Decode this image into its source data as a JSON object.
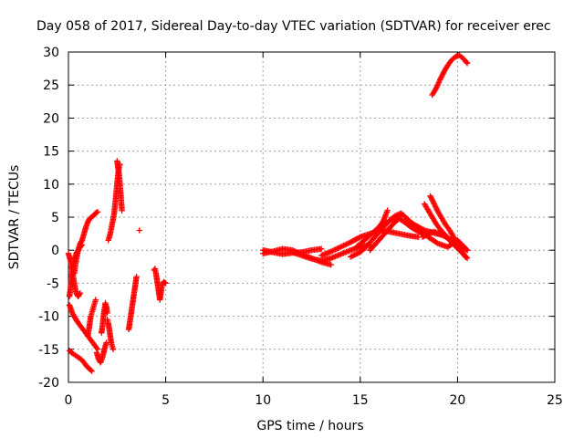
{
  "chart_data": {
    "type": "scatter",
    "title": "Day 058 of 2017, Sidereal Day-to-day VTEC variation (SDTVAR) for receiver erec",
    "xlabel": "GPS time / hours",
    "ylabel": "SDTVAR / TECUs",
    "xlim": [
      0,
      25
    ],
    "ylim": [
      -20,
      30
    ],
    "xticks": [
      0,
      5,
      10,
      15,
      20,
      25
    ],
    "yticks": [
      -20,
      -15,
      -10,
      -5,
      0,
      5,
      10,
      15,
      20,
      25,
      30
    ],
    "xtick_labels": [
      "0",
      "5",
      "10",
      "15",
      "20",
      "25"
    ],
    "ytick_labels": [
      "-20",
      "-15",
      "-10",
      "-5",
      "0",
      "5",
      "10",
      "15",
      "20",
      "25",
      "30"
    ],
    "grid": true,
    "marker": "+",
    "color": "#ff0000",
    "segments": [
      {
        "name": "a",
        "x": [
          0.0,
          0.1,
          0.2,
          0.3,
          0.4,
          0.5,
          0.6
        ],
        "y": [
          -0.5,
          -1.5,
          -3.0,
          -5.0,
          -6.5,
          -7.0,
          -6.5
        ]
      },
      {
        "name": "b",
        "x": [
          0.05,
          0.1,
          0.15,
          0.2,
          0.3,
          0.4,
          0.5,
          0.6,
          0.7
        ],
        "y": [
          -7.0,
          -6.0,
          -4.5,
          -3.0,
          -1.5,
          -0.5,
          0.0,
          0.5,
          0.8
        ]
      },
      {
        "name": "c",
        "x": [
          0.3,
          0.4,
          0.5,
          0.6,
          0.7,
          0.8,
          0.9,
          1.0,
          1.1,
          1.2,
          1.3,
          1.4,
          1.5
        ],
        "y": [
          -3.5,
          -1.5,
          0.0,
          1.0,
          1.5,
          2.5,
          3.5,
          4.3,
          4.8,
          5.0,
          5.3,
          5.6,
          5.8
        ]
      },
      {
        "name": "d",
        "x": [
          0.05,
          0.2,
          0.35,
          0.5,
          0.65,
          0.8,
          0.95,
          1.1,
          1.25,
          1.4,
          1.5
        ],
        "y": [
          -8.3,
          -9.5,
          -10.3,
          -11.0,
          -11.6,
          -12.2,
          -12.8,
          -13.4,
          -14.0,
          -14.6,
          -15.0
        ]
      },
      {
        "name": "e",
        "x": [
          0.05,
          0.2,
          0.35,
          0.5,
          0.65,
          0.8,
          0.95,
          1.1,
          1.2
        ],
        "y": [
          -15.2,
          -15.6,
          -15.9,
          -16.2,
          -16.5,
          -17.0,
          -17.6,
          -18.0,
          -18.3
        ]
      },
      {
        "name": "f",
        "x": [
          1.0,
          1.05,
          1.1,
          1.15,
          1.2,
          1.25,
          1.3,
          1.35,
          1.4
        ],
        "y": [
          -13.0,
          -12.0,
          -11.0,
          -10.0,
          -9.5,
          -9.0,
          -8.5,
          -8.0,
          -7.5
        ]
      },
      {
        "name": "g",
        "x": [
          1.45,
          1.55,
          1.65,
          1.75,
          1.85,
          1.95
        ],
        "y": [
          -15.5,
          -16.5,
          -17.0,
          -16.2,
          -15.0,
          -14.0
        ]
      },
      {
        "name": "h",
        "x": [
          1.7,
          1.75,
          1.8,
          1.85,
          1.9,
          1.95,
          2.0
        ],
        "y": [
          -12.5,
          -11.5,
          -10.0,
          -9.0,
          -8.0,
          -8.5,
          -9.5
        ]
      },
      {
        "name": "i",
        "x": [
          2.0,
          2.05,
          2.1,
          2.15,
          2.2,
          2.25,
          2.3
        ],
        "y": [
          -10.5,
          -11.0,
          -12.0,
          -13.0,
          -14.0,
          -14.5,
          -15.0
        ]
      },
      {
        "name": "j",
        "x": [
          2.05,
          2.15,
          2.25,
          2.35,
          2.4,
          2.45,
          2.5,
          2.55,
          2.6,
          2.65
        ],
        "y": [
          1.5,
          2.5,
          4.0,
          5.5,
          7.0,
          8.5,
          10.0,
          11.5,
          12.5,
          13.0
        ]
      },
      {
        "name": "k",
        "x": [
          2.5,
          2.55,
          2.6,
          2.65,
          2.7,
          2.75
        ],
        "y": [
          13.5,
          12.5,
          11.5,
          10.0,
          8.0,
          6.0
        ]
      },
      {
        "name": "l",
        "x": [
          3.1,
          3.15,
          3.2,
          3.25,
          3.3,
          3.35,
          3.4,
          3.45,
          3.5
        ],
        "y": [
          -12.0,
          -11.0,
          -10.0,
          -9.0,
          -8.0,
          -7.0,
          -6.0,
          -5.0,
          -4.0
        ]
      },
      {
        "name": "m",
        "x": [
          3.65
        ],
        "y": [
          3.0
        ]
      },
      {
        "name": "n",
        "x": [
          4.4,
          4.45,
          4.5,
          4.55,
          4.6,
          4.65,
          4.7,
          4.75,
          4.8,
          4.85,
          4.9,
          5.0
        ],
        "y": [
          -3.0,
          -2.8,
          -3.5,
          -4.5,
          -5.5,
          -6.5,
          -7.5,
          -6.5,
          -5.5,
          -5.0,
          -4.8,
          -5.0
        ]
      },
      {
        "name": "o",
        "x": [
          10.0,
          10.5,
          11.0,
          11.5,
          12.0,
          12.5,
          13.0
        ],
        "y": [
          0.0,
          -0.3,
          -0.6,
          -0.4,
          -0.3,
          0.0,
          0.2
        ]
      },
      {
        "name": "p",
        "x": [
          10.0,
          10.5,
          11.0,
          11.5,
          12.0,
          12.5,
          13.0,
          13.5
        ],
        "y": [
          -0.5,
          -0.2,
          0.2,
          0.0,
          -0.6,
          -1.2,
          -1.8,
          -2.2
        ]
      },
      {
        "name": "q",
        "x": [
          11.5,
          12.0,
          12.5,
          13.0,
          13.5,
          14.0,
          14.5,
          15.0,
          15.5
        ],
        "y": [
          -0.3,
          -0.8,
          -1.3,
          -1.6,
          -1.2,
          -0.6,
          0.0,
          0.5,
          0.8
        ]
      },
      {
        "name": "r",
        "x": [
          13.0,
          13.5,
          14.0,
          14.5,
          15.0,
          15.5,
          16.0,
          16.5,
          17.0,
          17.5,
          18.0
        ],
        "y": [
          -0.8,
          -0.2,
          0.5,
          1.2,
          2.0,
          2.5,
          3.0,
          2.8,
          2.5,
          2.2,
          2.0
        ]
      },
      {
        "name": "s",
        "x": [
          14.5,
          15.0,
          15.3,
          15.6,
          15.9,
          16.2,
          16.5,
          16.8,
          17.1
        ],
        "y": [
          -1.0,
          -0.3,
          0.5,
          1.5,
          2.5,
          3.5,
          4.5,
          5.0,
          5.3
        ]
      },
      {
        "name": "t",
        "x": [
          15.5,
          15.8,
          16.1,
          16.4,
          16.7,
          17.0,
          17.3,
          17.6,
          17.9,
          18.2,
          18.5
        ],
        "y": [
          0.0,
          1.0,
          2.0,
          3.0,
          4.0,
          4.8,
          4.2,
          3.5,
          3.0,
          2.5,
          2.2
        ]
      },
      {
        "name": "u",
        "x": [
          14.8,
          15.1,
          15.4,
          15.7,
          16.0,
          16.2,
          16.3,
          16.4
        ],
        "y": [
          0.5,
          1.2,
          2.0,
          2.8,
          3.6,
          4.5,
          5.3,
          6.0
        ]
      },
      {
        "name": "v",
        "x": [
          16.5,
          16.8,
          17.1,
          17.4,
          17.7,
          18.0,
          18.3,
          18.6,
          18.9,
          19.2,
          19.5
        ],
        "y": [
          4.5,
          5.2,
          5.6,
          4.8,
          4.0,
          3.5,
          3.0,
          2.8,
          2.5,
          2.3,
          2.0
        ]
      },
      {
        "name": "w",
        "x": [
          18.6,
          18.8,
          19.0,
          19.2,
          19.4,
          19.6,
          19.8,
          20.0,
          20.2,
          20.4
        ],
        "y": [
          8.2,
          7.0,
          5.8,
          4.8,
          3.8,
          3.0,
          2.0,
          1.0,
          0.0,
          -1.0
        ]
      },
      {
        "name": "x",
        "x": [
          18.3,
          18.5,
          18.7,
          18.9,
          19.1,
          19.3,
          19.5,
          19.7,
          19.9,
          20.1,
          20.3,
          20.5
        ],
        "y": [
          7.0,
          6.0,
          5.0,
          4.0,
          3.2,
          2.5,
          1.8,
          1.2,
          0.6,
          0.0,
          -0.6,
          -1.2
        ]
      },
      {
        "name": "y",
        "x": [
          18.2,
          18.5,
          18.8,
          19.1,
          19.4,
          19.7,
          20.0,
          20.3,
          20.5
        ],
        "y": [
          2.0,
          2.5,
          2.8,
          2.5,
          2.0,
          1.5,
          1.0,
          0.5,
          0.0
        ]
      },
      {
        "name": "z",
        "x": [
          18.0,
          18.5,
          19.0,
          19.5,
          20.0,
          20.5
        ],
        "y": [
          3.0,
          2.0,
          1.0,
          0.5,
          1.5,
          0.0
        ]
      },
      {
        "name": "peak",
        "x": [
          18.7,
          18.9,
          19.1,
          19.3,
          19.5,
          19.7,
          19.9,
          20.1,
          20.3,
          20.5
        ],
        "y": [
          23.5,
          24.5,
          25.8,
          27.0,
          28.0,
          28.8,
          29.3,
          29.5,
          29.0,
          28.3
        ]
      }
    ]
  }
}
